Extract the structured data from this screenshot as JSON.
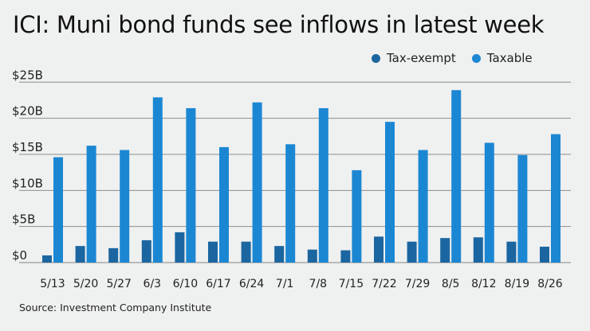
{
  "colors": {
    "background": "#eff0f0",
    "tax_exempt": "#1b66a0",
    "taxable": "#1b87d3",
    "grid": "#8e8e8e"
  },
  "chart_data": {
    "type": "bar",
    "title": "ICI: Muni bond funds see inflows in latest week",
    "xlabel": "",
    "ylabel": "",
    "categories": [
      "5/13",
      "5/20",
      "5/27",
      "6/3",
      "6/10",
      "6/17",
      "6/24",
      "7/1",
      "7/8",
      "7/15",
      "7/22",
      "7/29",
      "8/5",
      "8/12",
      "8/19",
      "8/26"
    ],
    "series": [
      {
        "name": "Tax-exempt",
        "color": "#1b66a0",
        "values": [
          1.0,
          2.3,
          2.0,
          3.1,
          4.2,
          2.9,
          2.9,
          2.3,
          1.8,
          1.7,
          3.6,
          2.9,
          3.4,
          3.5,
          2.9,
          2.2
        ]
      },
      {
        "name": "Taxable",
        "color": "#1b87d3",
        "values": [
          14.6,
          16.2,
          15.6,
          22.9,
          21.4,
          16.0,
          22.2,
          16.4,
          21.4,
          12.8,
          19.5,
          15.6,
          23.9,
          16.6,
          14.9,
          17.8
        ]
      }
    ],
    "ylim": [
      0,
      25
    ],
    "yticks": [
      0,
      5,
      10,
      15,
      20,
      25
    ],
    "ytick_labels": [
      "$0",
      "$5B",
      "$10B",
      "$15B",
      "$20B",
      "$25B"
    ],
    "grid": true,
    "legend_position": "top-right",
    "units": "billions USD"
  },
  "source": "Source: Investment Company Institute"
}
